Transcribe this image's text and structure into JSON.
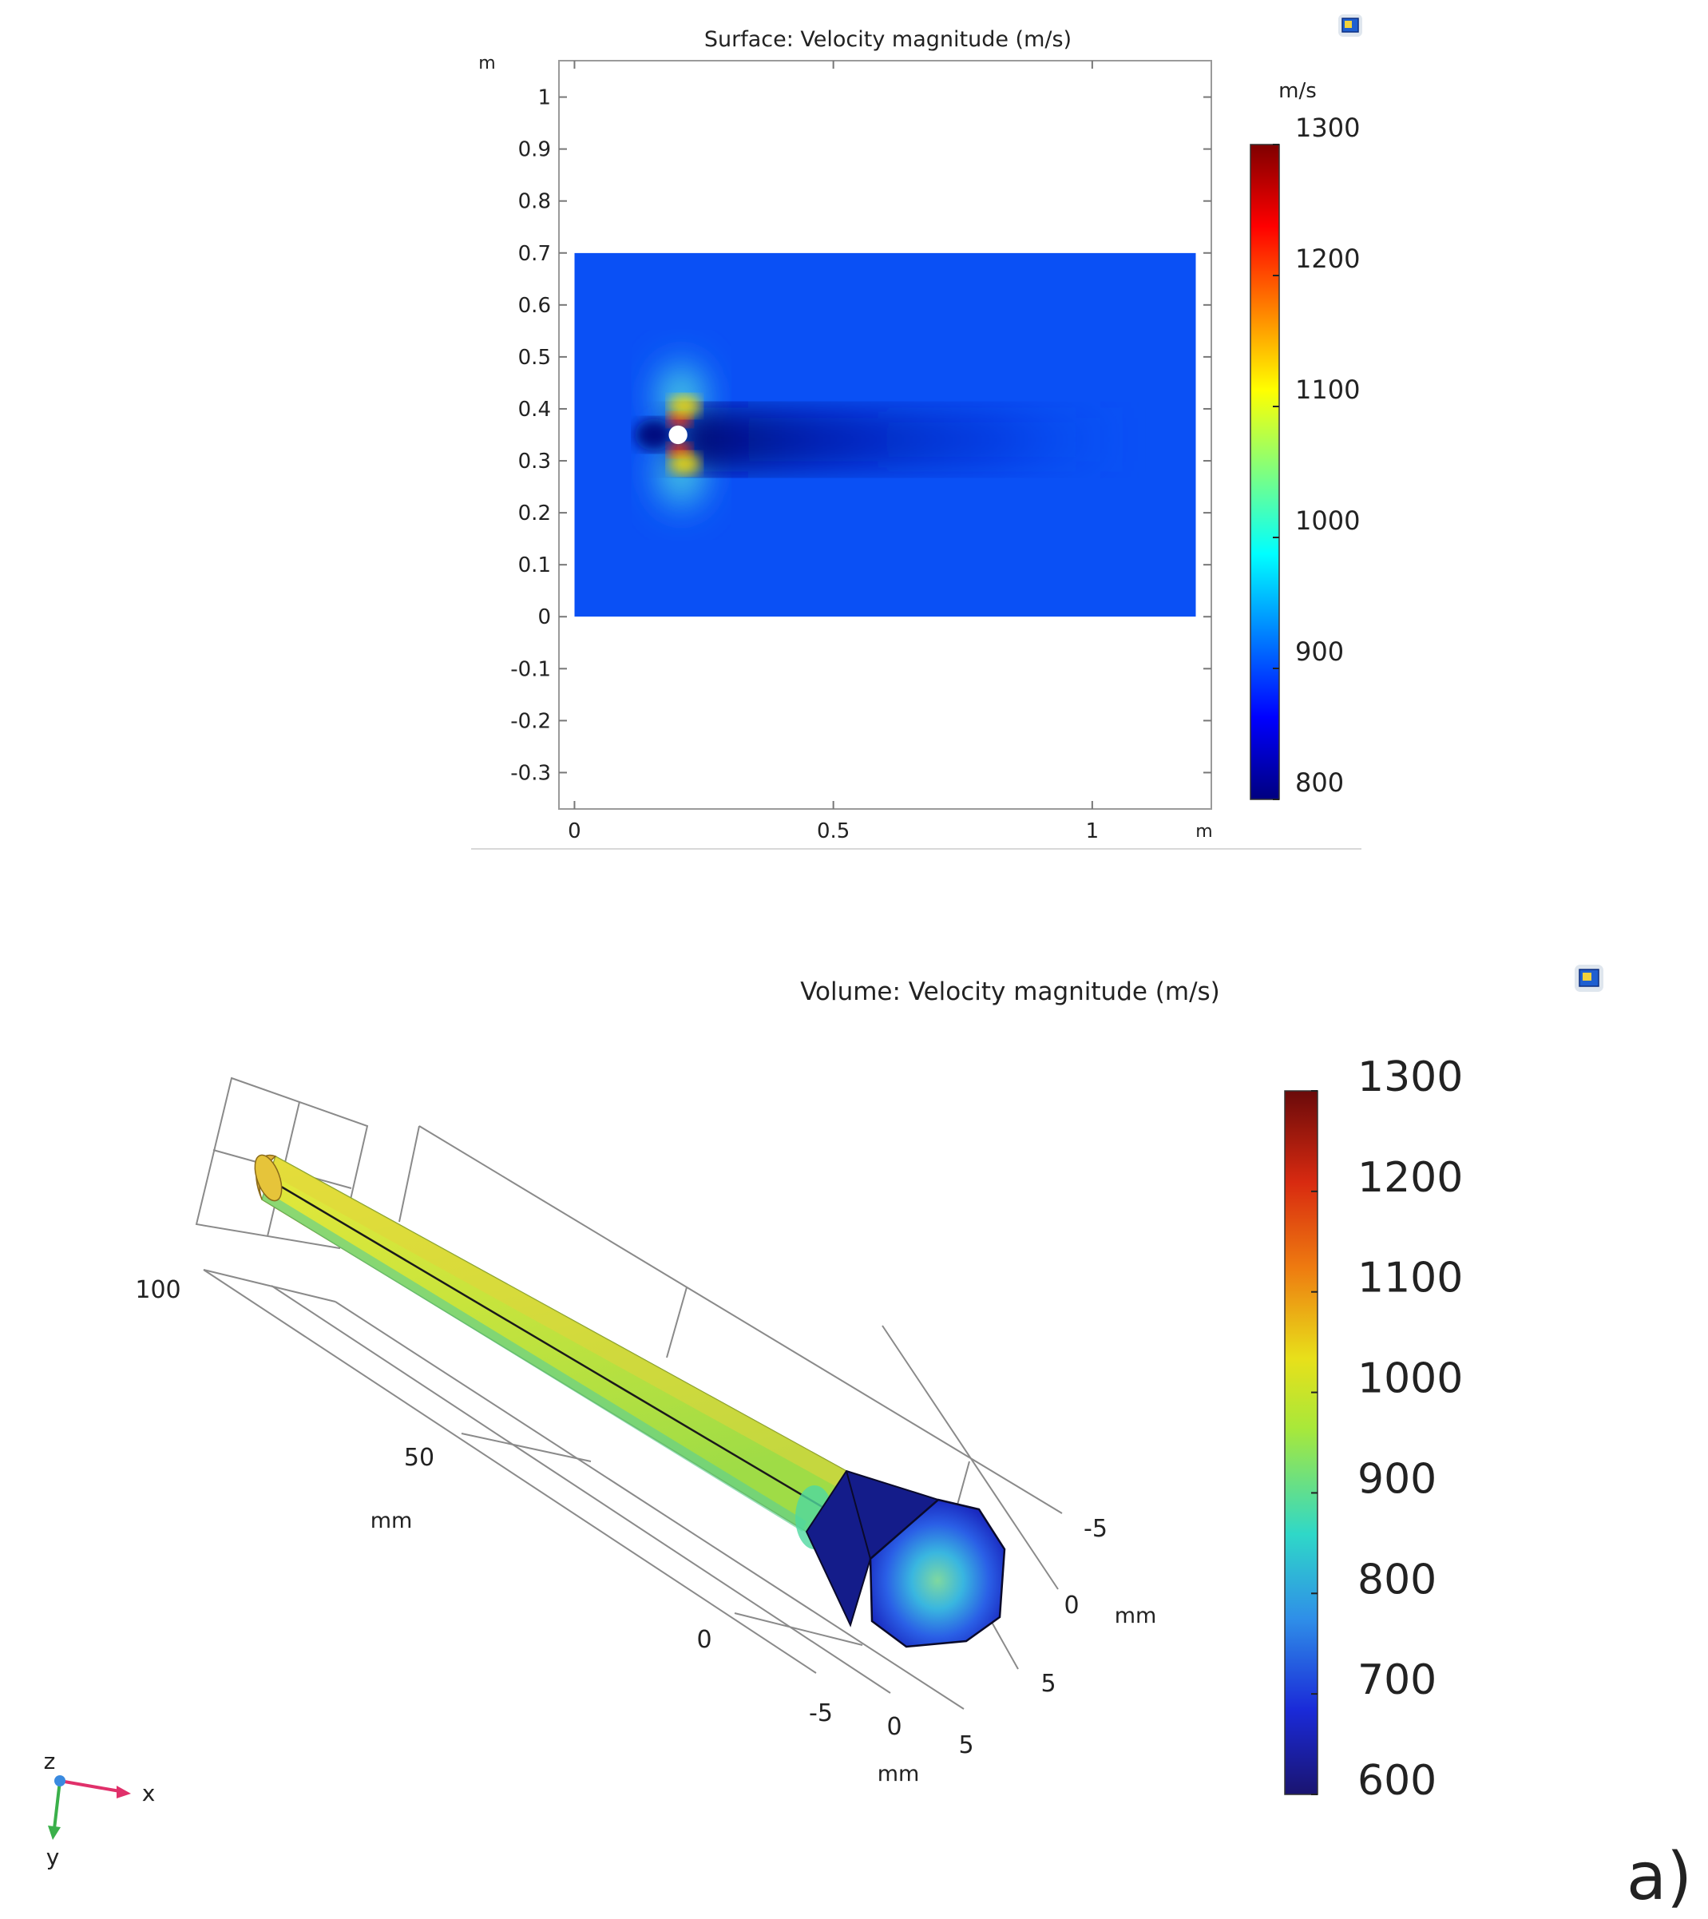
{
  "panel_label": "a)",
  "chart_data": [
    {
      "type": "heatmap",
      "title": "Surface: Velocity magnitude (m/s)",
      "xlabel_unit": "m",
      "ylabel_unit": "m",
      "x_ticks": [
        "0",
        "0.5",
        "1"
      ],
      "x_tick_values": [
        0,
        0.5,
        1
      ],
      "y_ticks": [
        "1",
        "0.9",
        "0.8",
        "0.7",
        "0.6",
        "0.5",
        "0.4",
        "0.3",
        "0.2",
        "0.1",
        "0",
        "-0.1",
        "-0.2",
        "-0.3"
      ],
      "y_tick_values": [
        1,
        0.9,
        0.8,
        0.7,
        0.6,
        0.5,
        0.4,
        0.3,
        0.2,
        0.1,
        0,
        -0.1,
        -0.2,
        -0.3
      ],
      "xlim": [
        -0.03,
        1.23
      ],
      "ylim": [
        -0.37,
        1.07
      ],
      "domain": {
        "x": [
          0,
          1.2
        ],
        "y": [
          0,
          0.7
        ]
      },
      "obstacle": {
        "x": 0.2,
        "y": 0.35,
        "r": 0.018
      },
      "colorbar": {
        "unit": "m/s",
        "range": [
          800,
          1300
        ],
        "ticks": [
          "1300",
          "1200",
          "1100",
          "1000",
          "900",
          "800"
        ],
        "tick_values": [
          1300,
          1200,
          1100,
          1000,
          900,
          800
        ]
      },
      "field_description_values": {
        "freestream": 870,
        "wake_min": 810,
        "max": 1300
      }
    },
    {
      "type": "heatmap",
      "title": "Volume: Velocity magnitude (m/s)",
      "axis_ticks_long": [
        "100",
        "50",
        "0"
      ],
      "axis_label_long": "mm",
      "axis_ticks_x": [
        "-5",
        "0",
        "5"
      ],
      "axis_label_x": "mm",
      "axis_ticks_z": [
        "-5",
        "0",
        "5"
      ],
      "axis_label_z": "mm",
      "triad": {
        "x": "x",
        "y": "y",
        "z": "z"
      },
      "colorbar": {
        "range": [
          600,
          1300
        ],
        "ticks": [
          "1300",
          "1200",
          "1100",
          "1000",
          "900",
          "800",
          "700",
          "600"
        ],
        "tick_values": [
          1300,
          1200,
          1100,
          1000,
          900,
          800,
          700,
          600
        ]
      }
    }
  ],
  "colors": {
    "jet": [
      "#00007f",
      "#0000ff",
      "#007fff",
      "#00ffff",
      "#7fff7f",
      "#ffff00",
      "#ff7f00",
      "#ff0000",
      "#7f0000"
    ],
    "freestream": "#0a50f5",
    "wake": "#051aa8",
    "rod": "#c6e63a",
    "end_cap_edge": "#141c8a"
  },
  "icons": [
    "toolbar-image-icon",
    "toolbar-image-icon"
  ]
}
